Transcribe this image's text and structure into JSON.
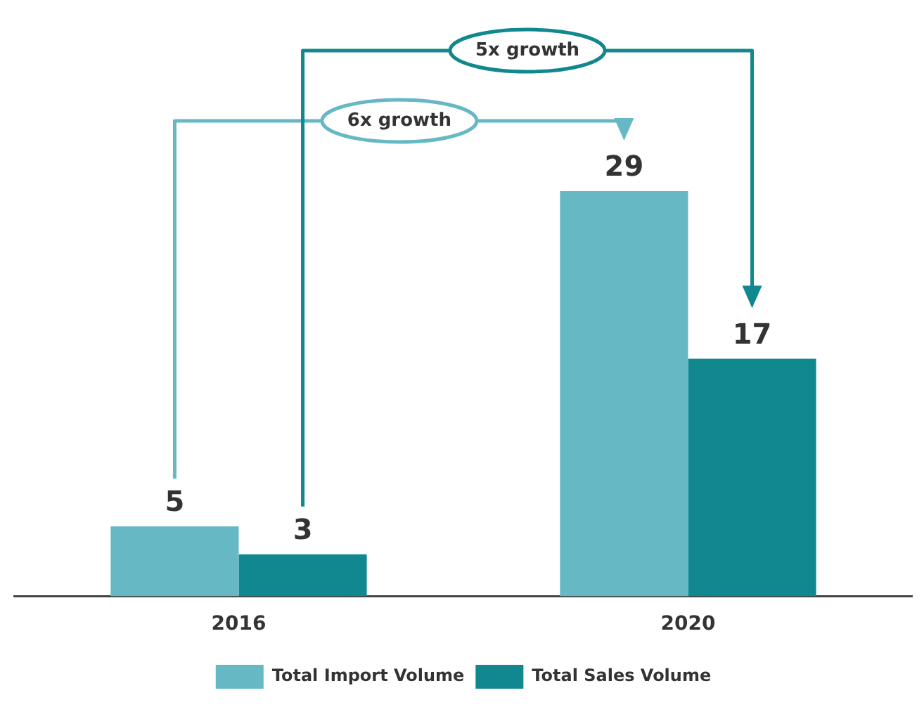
{
  "chart_data": {
    "type": "bar",
    "categories": [
      "2016",
      "2020"
    ],
    "series": [
      {
        "name": "Total Import Volume",
        "color": "#66b8c5",
        "values": [
          5,
          29
        ]
      },
      {
        "name": "Total Sales Volume",
        "color": "#118790",
        "values": [
          3,
          17
        ]
      }
    ],
    "data_labels": true,
    "legend": "bottom",
    "grid": false,
    "tick_labels": "x",
    "annotations": [
      "6x growth",
      "5x growth"
    ]
  }
}
